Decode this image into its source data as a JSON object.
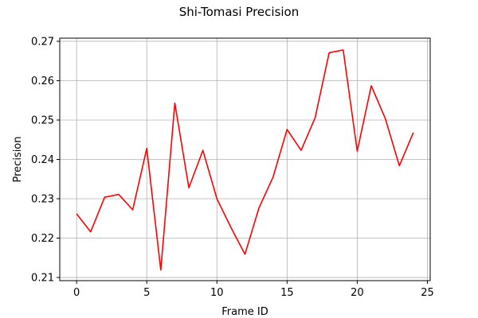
{
  "chart_data": {
    "type": "line",
    "title": "Shi-Tomasi Precision",
    "xlabel": "Frame ID",
    "ylabel": "Precision",
    "xlim": [
      -1.2,
      25.2
    ],
    "ylim": [
      0.2092,
      0.2708
    ],
    "xticks": [
      0,
      5,
      10,
      15,
      20,
      25
    ],
    "yticks": [
      0.21,
      0.22,
      0.23,
      0.24,
      0.25,
      0.26,
      0.27
    ],
    "grid": true,
    "series": [
      {
        "color": "#ff0000",
        "x": [
          0,
          1,
          2,
          3,
          4,
          5,
          6,
          7,
          8,
          9,
          10,
          11,
          12,
          13,
          14,
          15,
          16,
          17,
          18,
          19,
          20,
          21,
          22,
          23,
          24
        ],
        "y": [
          0.2262,
          0.2216,
          0.2304,
          0.2311,
          0.2272,
          0.2428,
          0.2119,
          0.2543,
          0.2328,
          0.2423,
          0.23,
          0.2227,
          0.2159,
          0.2277,
          0.2355,
          0.2476,
          0.2423,
          0.2506,
          0.2671,
          0.2678,
          0.2421,
          0.2587,
          0.2504,
          0.2384,
          0.2468
        ]
      }
    ]
  }
}
